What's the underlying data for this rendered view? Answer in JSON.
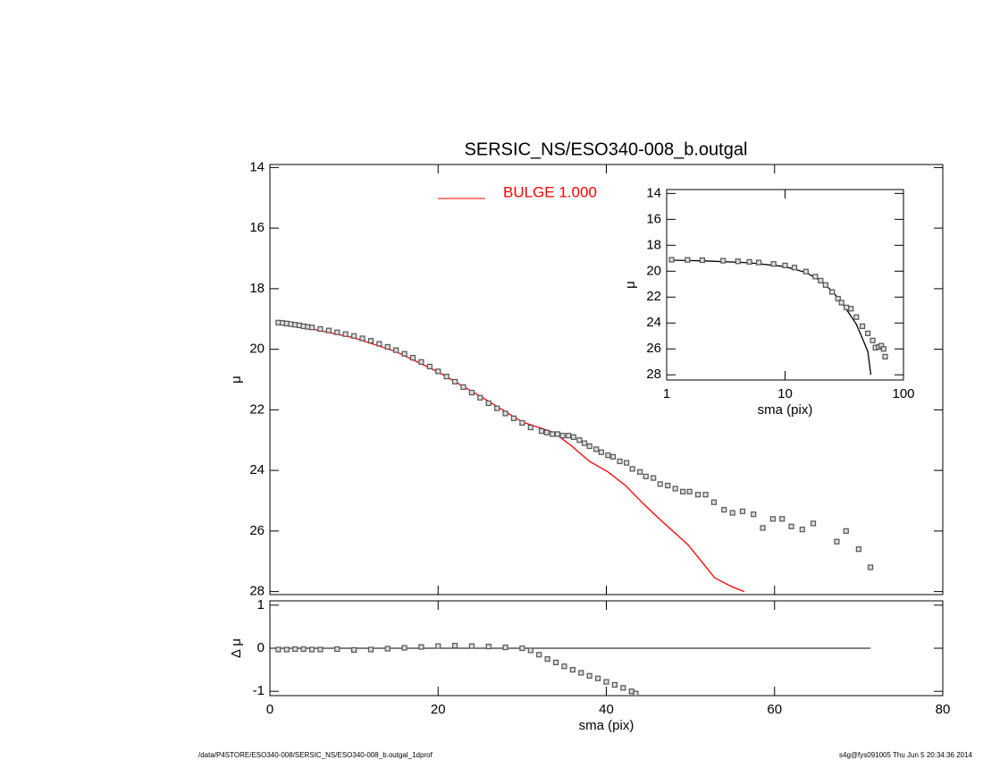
{
  "chart_data": [
    {
      "type": "scatter",
      "title": "SERSIC_NS/ESO340-008_b.outgal",
      "ylabel": "μ",
      "xlim": [
        0,
        80
      ],
      "xticks": [
        0,
        20,
        40,
        60,
        80
      ],
      "xtick_labels": false,
      "ylim": [
        28.1,
        13.9
      ],
      "yticks": [
        14,
        16,
        18,
        20,
        22,
        24,
        26,
        28
      ],
      "marker_color": "#555555",
      "x": [
        1,
        1.5,
        2,
        2.5,
        3,
        3.5,
        4,
        4.5,
        5,
        6,
        7,
        8,
        9,
        10,
        11,
        12,
        13,
        14,
        15,
        16,
        17,
        18,
        19,
        20,
        21,
        22,
        23,
        24,
        25,
        26,
        27,
        28,
        29,
        30,
        31,
        32.3,
        32.9,
        33.6,
        34.2,
        34.8,
        35.5,
        36.1,
        36.8,
        37.4,
        38,
        38.8,
        39.4,
        40.2,
        40.8,
        41.6,
        42.4,
        43.1,
        44,
        44.7,
        45.6,
        46.4,
        47.3,
        48.2,
        49.1,
        49.9,
        50.9,
        51.8,
        52.8,
        54,
        55,
        56.2,
        57.5,
        58.6,
        59.8,
        60.9,
        62,
        63.3,
        64.6,
        67.4,
        68.5,
        70,
        71.4
      ],
      "values": [
        19.12,
        19.13,
        19.15,
        19.17,
        19.19,
        19.21,
        19.24,
        19.26,
        19.28,
        19.33,
        19.38,
        19.44,
        19.5,
        19.56,
        19.64,
        19.72,
        19.82,
        19.92,
        20.03,
        20.15,
        20.28,
        20.42,
        20.57,
        20.73,
        20.9,
        21.07,
        21.25,
        21.43,
        21.6,
        21.78,
        21.95,
        22.12,
        22.28,
        22.43,
        22.58,
        22.7,
        22.75,
        22.8,
        22.8,
        22.85,
        22.85,
        22.9,
        23.0,
        23.1,
        23.2,
        23.3,
        23.4,
        23.5,
        23.55,
        23.7,
        23.75,
        23.95,
        24.05,
        24.2,
        24.25,
        24.45,
        24.5,
        24.6,
        24.7,
        24.7,
        24.8,
        24.8,
        25.05,
        25.3,
        25.4,
        25.35,
        25.45,
        25.9,
        25.6,
        25.6,
        25.85,
        25.95,
        25.75,
        26.35,
        26.0,
        26.6,
        27.2
      ],
      "lines": [
        {
          "name": "BULGE  1.000",
          "color": "#ff0000",
          "x": [
            1,
            5,
            10,
            15,
            20,
            25,
            30,
            33.8,
            35.9,
            38,
            40.2,
            42.3,
            44.4,
            46.5,
            49.7,
            51.3,
            52.9,
            55,
            56.4
          ],
          "values": [
            19.18,
            19.33,
            19.62,
            20.08,
            20.75,
            21.55,
            22.4,
            22.75,
            23.2,
            23.7,
            24.05,
            24.5,
            25.1,
            25.65,
            26.45,
            27.0,
            27.55,
            27.85,
            28.0
          ]
        }
      ]
    },
    {
      "type": "scatter",
      "xlabel": "sma (pix)",
      "ylabel": "Δ μ",
      "xlim": [
        0,
        80
      ],
      "xticks": [
        0,
        20,
        40,
        60,
        80
      ],
      "xtick_labels": true,
      "ylim": [
        -1.1,
        1.1
      ],
      "yticks": [
        -1,
        0,
        1
      ],
      "hline": 0,
      "marker_color": "#555555",
      "x": [
        1,
        2,
        3,
        4,
        5,
        6,
        8,
        10,
        12,
        14,
        16,
        18,
        20,
        22,
        24,
        26,
        28,
        30,
        31,
        32,
        33,
        34,
        35,
        36,
        37,
        38,
        39,
        40,
        41,
        42,
        43,
        43.5
      ],
      "values": [
        -0.03,
        -0.03,
        -0.02,
        -0.02,
        -0.03,
        -0.03,
        -0.02,
        -0.04,
        -0.03,
        -0.01,
        0.01,
        0.03,
        0.05,
        0.06,
        0.05,
        0.04,
        0.02,
        0.0,
        -0.05,
        -0.15,
        -0.25,
        -0.33,
        -0.42,
        -0.5,
        -0.57,
        -0.64,
        -0.7,
        -0.78,
        -0.85,
        -0.92,
        -1.0,
        -1.05
      ]
    },
    {
      "type": "scatter",
      "xlabel": "sma (pix)",
      "ylabel": "μ",
      "xlog": true,
      "xlim": [
        1,
        100
      ],
      "xticks": [
        1,
        10,
        100
      ],
      "xtick_labels": true,
      "ylim": [
        28.4,
        13.7
      ],
      "yticks": [
        14,
        16,
        18,
        20,
        22,
        24,
        26,
        28
      ],
      "marker_color": "#555555",
      "x": [
        1.1,
        1.5,
        2,
        3,
        4,
        5,
        6,
        8,
        10,
        12,
        15,
        18,
        20,
        22,
        25,
        28,
        30,
        33,
        36,
        40,
        45,
        50,
        55,
        58,
        62,
        65,
        68,
        70
      ],
      "values": [
        19.12,
        19.13,
        19.15,
        19.19,
        19.24,
        19.28,
        19.33,
        19.44,
        19.56,
        19.72,
        20.03,
        20.42,
        20.73,
        21.07,
        21.6,
        22.12,
        22.43,
        22.8,
        22.9,
        23.55,
        24.25,
        24.8,
        25.35,
        25.9,
        25.85,
        25.75,
        26.0,
        26.6
      ],
      "lines": [
        {
          "color": "#000000",
          "x": [
            1.1,
            2,
            5,
            10,
            15,
            20,
            25,
            30,
            35,
            40,
            45,
            50,
            53
          ],
          "values": [
            19.15,
            19.2,
            19.35,
            19.65,
            20.1,
            20.75,
            21.55,
            22.4,
            23.3,
            24.1,
            25.2,
            26.2,
            28.0
          ]
        }
      ]
    }
  ],
  "footer": {
    "left": "/data/P4STORE/ESO340-008/SERSIC_NS/ESO340-008_b.outgal_1dprof",
    "right": "s4g@fys091005  Thu Jun  5 20:34:36 2014"
  }
}
